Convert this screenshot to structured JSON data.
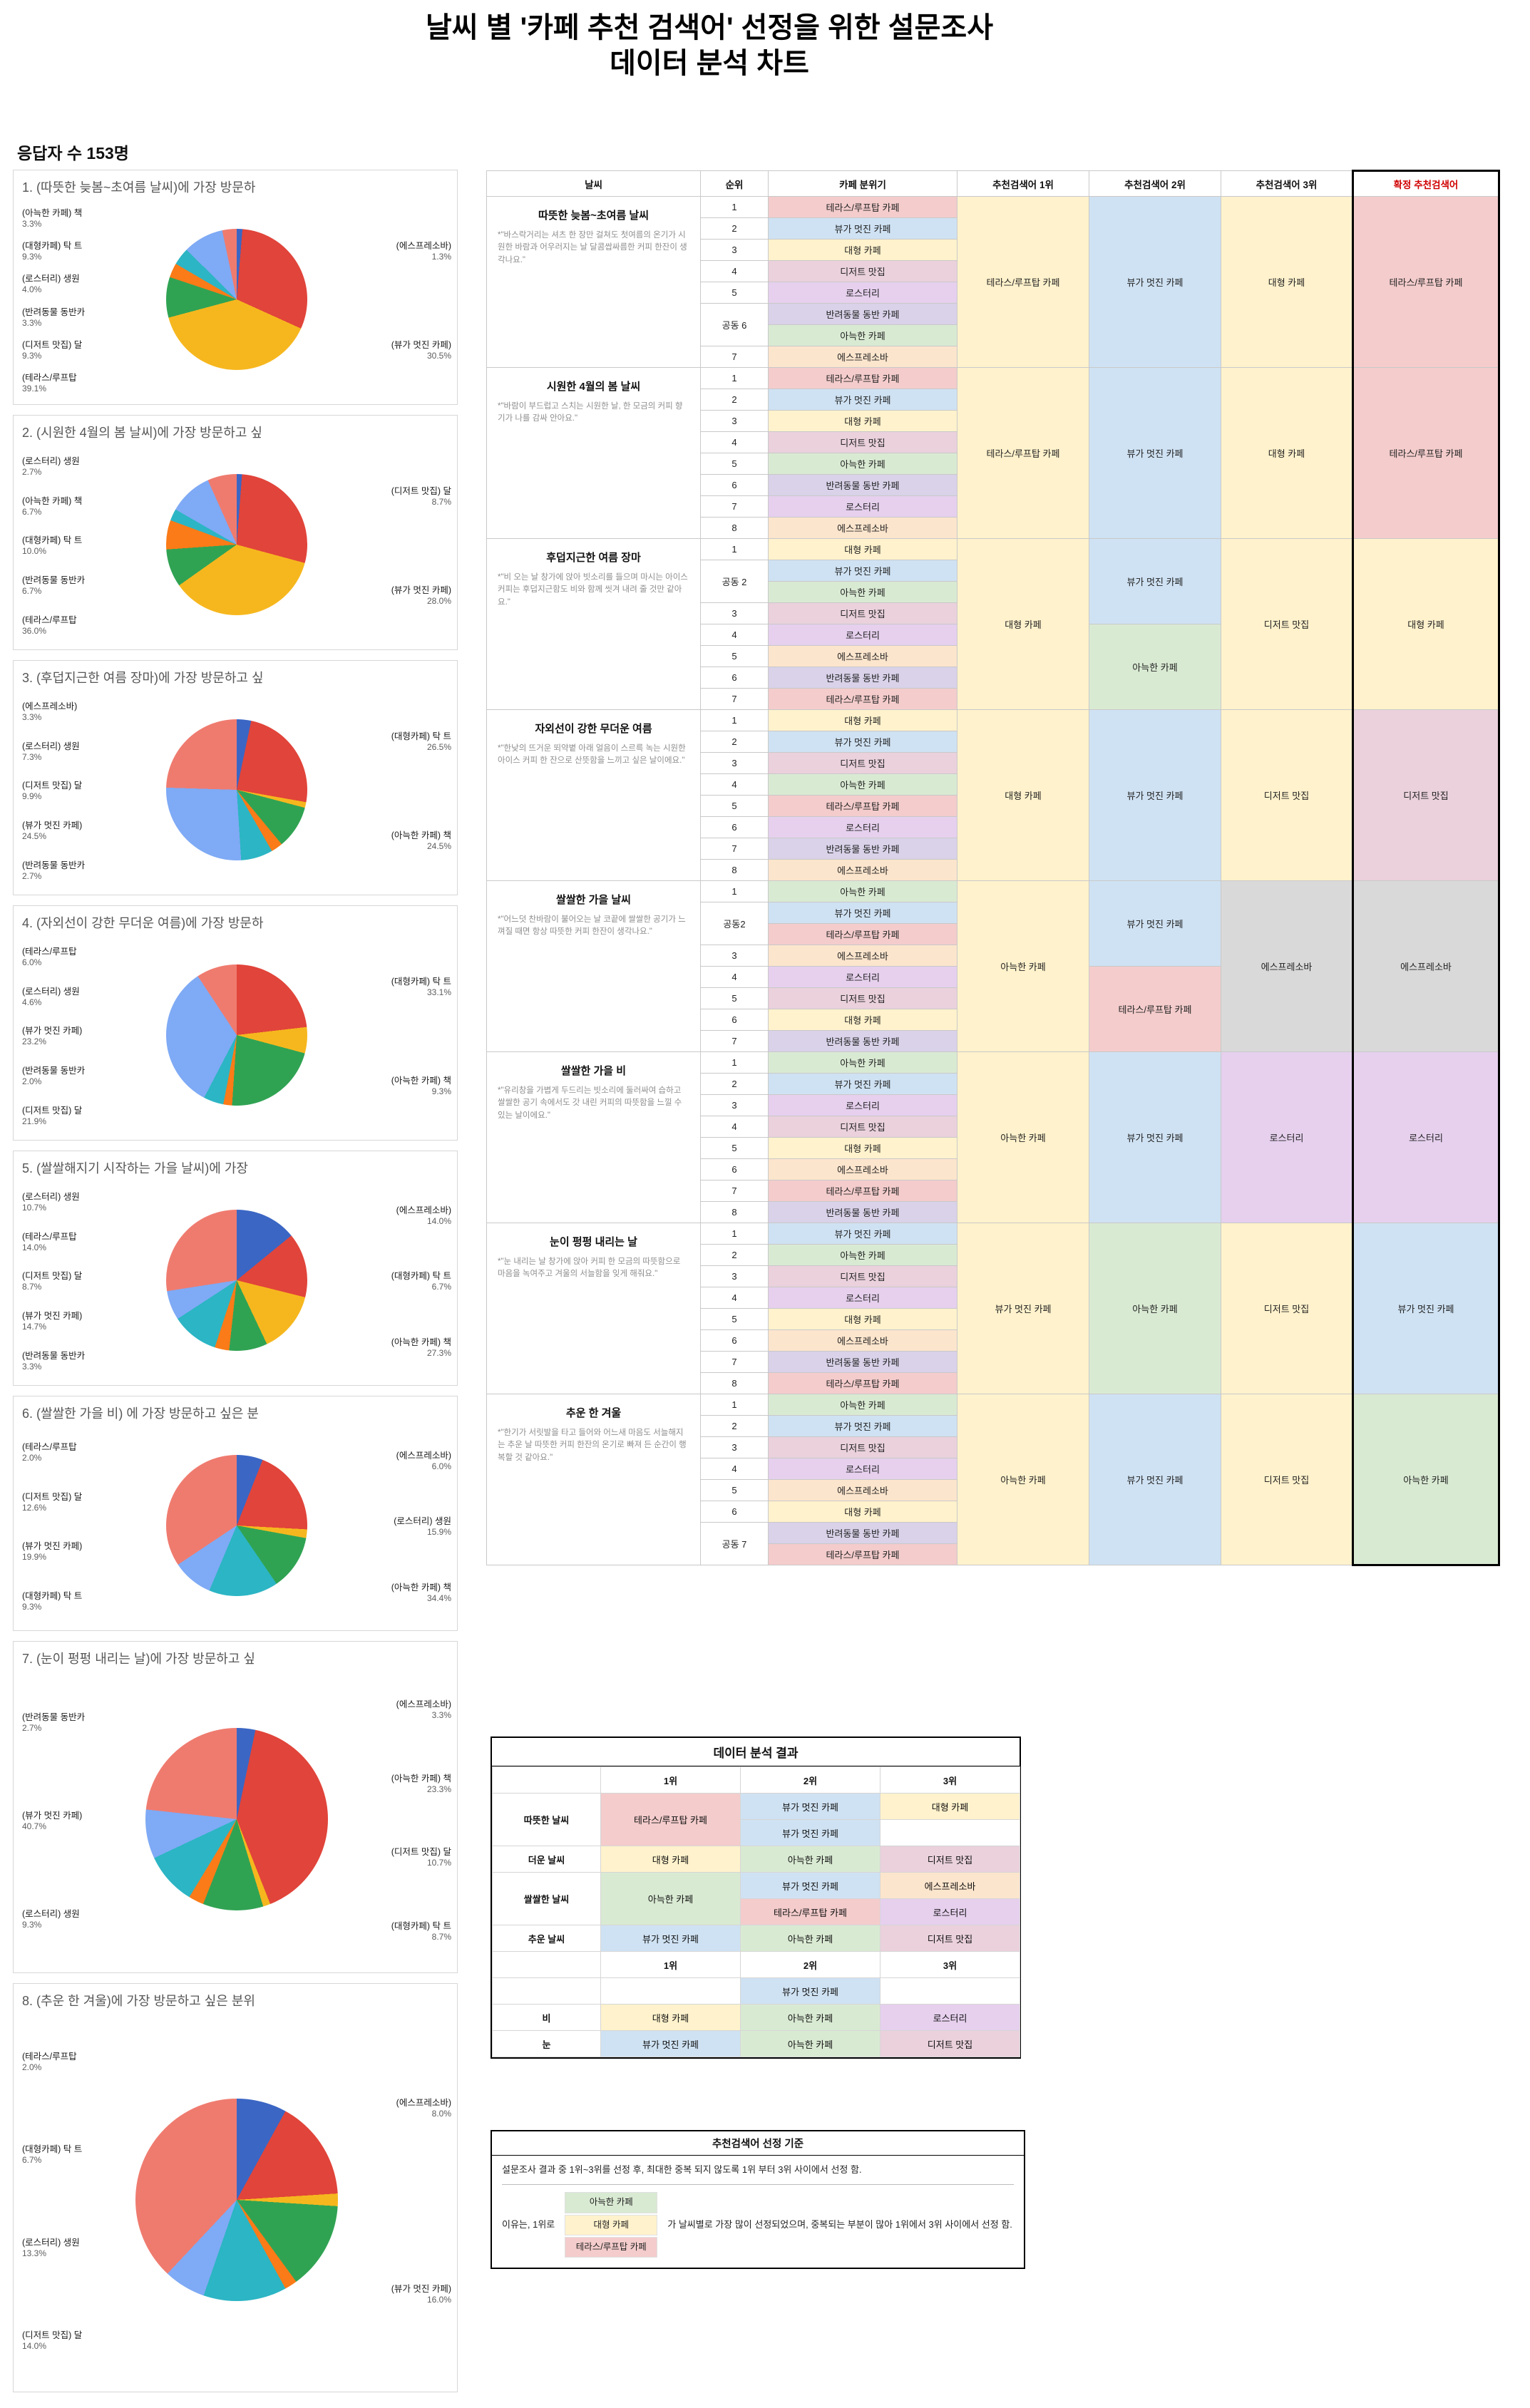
{
  "title": {
    "line1": "날씨 별 '카페 추천 검색어' 선정을 위한 설문조사",
    "line2": "데이터 분석 차트"
  },
  "respondents": "응답자 수 153명",
  "cafe_colors": {
    "테라스/루프탑 카페": "#f4cccc",
    "뷰가 멋진 카페": "#cfe2f3",
    "대형 카페": "#fff2cc",
    "디저트 맛집": "#ead1dc",
    "로스터리": "#e6d0ee",
    "반려동물 동반 카페": "#d9d2e9",
    "아늑한 카페": "#d9ead3",
    "에스프레소바": "#fce5cd"
  },
  "pie_categories": [
    {
      "key": "espresso",
      "label": "(에스프레소바)",
      "color": "#3b66c4"
    },
    {
      "key": "view",
      "label": "(뷰가 멋진 카페)",
      "color": "#e1443a"
    },
    {
      "key": "terrace",
      "label": "(테라스/루프탑",
      "color": "#f6b71e"
    },
    {
      "key": "dessert",
      "label": "(디저트 맛집) 달",
      "color": "#30a353"
    },
    {
      "key": "pet",
      "label": "(반려동물 동반카",
      "color": "#fa7b17"
    },
    {
      "key": "roastery",
      "label": "(로스터리) 생원",
      "color": "#2cb5c4"
    },
    {
      "key": "large",
      "label": "(대형카페) 탁 트",
      "color": "#7faaf5"
    },
    {
      "key": "cozy",
      "label": "(아늑한 카페) 책",
      "color": "#ef7b6f"
    }
  ],
  "chart_data": [
    {
      "type": "pie",
      "title": "1. (따뜻한 늦봄~초여름 날씨)에 가장 방문하",
      "values": {
        "espresso": 1.3,
        "view": 30.5,
        "terrace": 39.1,
        "dessert": 9.3,
        "pet": 3.3,
        "roastery": 4.0,
        "large": 9.3,
        "cozy": 3.3
      },
      "left": [
        "cozy",
        "large",
        "roastery",
        "pet",
        "dessert",
        "terrace"
      ],
      "right": [
        "espresso",
        "view"
      ]
    },
    {
      "type": "pie",
      "title": "2. (시원한 4월의 봄 날씨)에 가장 방문하고 싶",
      "values": {
        "espresso": 1.2,
        "view": 28.0,
        "terrace": 36.0,
        "dessert": 8.7,
        "pet": 6.7,
        "roastery": 2.7,
        "large": 10.0,
        "cozy": 6.7
      },
      "left": [
        "roastery",
        "cozy",
        "large",
        "pet",
        "terrace"
      ],
      "right": [
        "dessert",
        "view"
      ]
    },
    {
      "type": "pie",
      "title": "3. (후덥지근한 여름 장마)에 가장 방문하고 싶",
      "values": {
        "espresso": 3.3,
        "view": 24.5,
        "terrace": 1.3,
        "dessert": 9.9,
        "pet": 2.7,
        "roastery": 7.3,
        "large": 26.5,
        "cozy": 24.5
      },
      "left": [
        "espresso",
        "roastery",
        "dessert",
        "view",
        "pet"
      ],
      "right": [
        "large",
        "cozy"
      ]
    },
    {
      "type": "pie",
      "title": "4. (자외선이 강한 무더운 여름)에 가장 방문하",
      "values": {
        "espresso": 0,
        "view": 23.2,
        "terrace": 6.0,
        "dessert": 21.9,
        "pet": 2.0,
        "roastery": 4.6,
        "large": 33.1,
        "cozy": 9.3
      },
      "left": [
        "terrace",
        "roastery",
        "view",
        "pet",
        "dessert"
      ],
      "right": [
        "large",
        "cozy"
      ]
    },
    {
      "type": "pie",
      "title": "5. (쌀쌀해지기 시작하는 가을 날씨)에 가장",
      "values": {
        "espresso": 14.0,
        "view": 14.7,
        "terrace": 14.0,
        "dessert": 8.7,
        "pet": 3.3,
        "roastery": 10.7,
        "large": 6.7,
        "cozy": 27.3
      },
      "left": [
        "roastery",
        "terrace",
        "dessert",
        "view",
        "pet"
      ],
      "right": [
        "espresso",
        "large",
        "cozy"
      ]
    },
    {
      "type": "pie",
      "title": "6. (쌀쌀한 가을 비) 에 가장 방문하고 싶은 분",
      "values": {
        "espresso": 6.0,
        "view": 19.9,
        "terrace": 2.0,
        "dessert": 12.6,
        "pet": 0,
        "roastery": 15.9,
        "large": 9.3,
        "cozy": 34.4
      },
      "left": [
        "terrace",
        "dessert",
        "view",
        "large"
      ],
      "right": [
        "espresso",
        "roastery",
        "cozy"
      ]
    },
    {
      "type": "pie",
      "title": "7. (눈이 펑펑 내리는 날)에 가장 방문하고 싶",
      "values": {
        "espresso": 3.3,
        "view": 40.7,
        "terrace": 1.3,
        "dessert": 10.7,
        "pet": 2.7,
        "roastery": 9.3,
        "large": 8.7,
        "cozy": 23.3
      },
      "left": [
        "pet",
        "view",
        "roastery"
      ],
      "right": [
        "espresso",
        "cozy",
        "dessert",
        "large"
      ]
    },
    {
      "type": "pie",
      "title": "8. (추운 한 겨울)에 가장 방문하고 싶은 분위",
      "values": {
        "espresso": 8.0,
        "view": 16.0,
        "terrace": 2.0,
        "dessert": 14.0,
        "pet": 2.0,
        "roastery": 13.3,
        "large": 6.7,
        "cozy": 38.0
      },
      "left": [
        "terrace",
        "large",
        "roastery",
        "dessert"
      ],
      "right": [
        "espresso",
        "view"
      ]
    }
  ],
  "table": {
    "headers": [
      "날씨",
      "순위",
      "카페 분위기",
      "추천검색어 1위",
      "추천검색어 2위",
      "추천검색어 3위",
      "확정 추천검색어"
    ],
    "groups": [
      {
        "weather": "따뜻한 늦봄~초여름 날씨",
        "quote": "*\"바스락거리는 셔츠 한 장만 걸쳐도 첫여름의 온기가 시원한 바람과 어우러지는 날 달콤쌉싸름한 커피 한잔이 생각나요.\"",
        "ranks": [
          {
            "r": "1"
          },
          {
            "r": "2"
          },
          {
            "r": "3"
          },
          {
            "r": "4"
          },
          {
            "r": "5"
          },
          {
            "r": "공동 6",
            "span": 2
          },
          {
            "r": "7"
          }
        ],
        "cafes": [
          "테라스/루프탑 카페",
          "뷰가 멋진 카페",
          "대형 카페",
          "디저트 맛집",
          "로스터리",
          "반려동물 동반 카페",
          "아늑한 카페",
          "에스프레소바"
        ],
        "rec1": [
          {
            "t": "테라스/루프탑 카페",
            "c": "#fff2cc",
            "span": 8
          }
        ],
        "rec2": [
          {
            "t": "뷰가 멋진 카페",
            "c": "#cfe2f3",
            "span": 8
          }
        ],
        "rec3": [
          {
            "t": "대형 카페",
            "c": "#fff2cc",
            "span": 8
          }
        ],
        "final": {
          "t": "테라스/루프탑 카페",
          "c": "#f4cccc"
        }
      },
      {
        "weather": "시원한 4월의 봄 날씨",
        "quote": "*\"바람이 부드럽고 스치는 시원한 날, 한 모금의 커피 향기가 나를 감싸 안아요.\"",
        "ranks": [
          {
            "r": "1"
          },
          {
            "r": "2"
          },
          {
            "r": "3"
          },
          {
            "r": "4"
          },
          {
            "r": "5"
          },
          {
            "r": "6"
          },
          {
            "r": "7"
          },
          {
            "r": "8"
          }
        ],
        "cafes": [
          "테라스/루프탑 카페",
          "뷰가 멋진 카페",
          "대형 카페",
          "디저트 맛집",
          "아늑한 카페",
          "반려동물 동반 카페",
          "로스터리",
          "에스프레소바"
        ],
        "rec1": [
          {
            "t": "테라스/루프탑 카페",
            "c": "#fff2cc",
            "span": 8
          }
        ],
        "rec2": [
          {
            "t": "뷰가 멋진 카페",
            "c": "#cfe2f3",
            "span": 8
          }
        ],
        "rec3": [
          {
            "t": "대형 카페",
            "c": "#fff2cc",
            "span": 8
          }
        ],
        "final": {
          "t": "테라스/루프탑 카페",
          "c": "#f4cccc"
        }
      },
      {
        "weather": "후덥지근한 여름 장마",
        "quote": "*\"비 오는 날 창가에 앉아 빗소리를 들으며 마시는 아이스 커피는 후덥지근함도 비와 함께 씻겨 내려 줄 것만 같아요.\"",
        "ranks": [
          {
            "r": "1"
          },
          {
            "r": "공동 2",
            "span": 2
          },
          {
            "r": "3"
          },
          {
            "r": "4"
          },
          {
            "r": "5"
          },
          {
            "r": "6"
          },
          {
            "r": "7"
          }
        ],
        "cafes": [
          "대형 카페",
          "뷰가 멋진 카페",
          "아늑한 카페",
          "디저트 맛집",
          "로스터리",
          "에스프레소바",
          "반려동물 동반 카페",
          "테라스/루프탑 카페"
        ],
        "rec1": [
          {
            "t": "대형 카페",
            "c": "#fff2cc",
            "span": 8
          }
        ],
        "rec2": [
          {
            "t": "뷰가 멋진 카페",
            "c": "#cfe2f3",
            "span": 4
          },
          {
            "t": "아늑한 카페",
            "c": "#d9ead3",
            "span": 4
          }
        ],
        "rec3": [
          {
            "t": "디저트 맛집",
            "c": "#fff2cc",
            "span": 8
          }
        ],
        "final": {
          "t": "대형 카페",
          "c": "#fff2cc"
        }
      },
      {
        "weather": "자외선이 강한 무더운 여름",
        "quote": "*\"한낮의 뜨거운 뙤약볕 아래 얼음이 스르륵 녹는 시원한 아이스 커피 한 잔으로 산뜻함을 느끼고 싶은 날이에요.\"",
        "ranks": [
          {
            "r": "1"
          },
          {
            "r": "2"
          },
          {
            "r": "3"
          },
          {
            "r": "4"
          },
          {
            "r": "5"
          },
          {
            "r": "6"
          },
          {
            "r": "7"
          },
          {
            "r": "8"
          }
        ],
        "cafes": [
          "대형 카페",
          "뷰가 멋진 카페",
          "디저트 맛집",
          "아늑한 카페",
          "테라스/루프탑 카페",
          "로스터리",
          "반려동물 동반 카페",
          "에스프레소바"
        ],
        "rec1": [
          {
            "t": "대형 카페",
            "c": "#fff2cc",
            "span": 8
          }
        ],
        "rec2": [
          {
            "t": "뷰가 멋진 카페",
            "c": "#cfe2f3",
            "span": 8
          }
        ],
        "rec3": [
          {
            "t": "디저트 맛집",
            "c": "#fff2cc",
            "span": 8
          }
        ],
        "final": {
          "t": "디저트 맛집",
          "c": "#ead1dc"
        }
      },
      {
        "weather": "쌀쌀한 가을 날씨",
        "quote": "*\"어느덧 찬바람이 불어오는 날 코끝에 쌀쌀한 공기가 느껴질 때면 항상 따뜻한 커피 한잔이 생각나요.\"",
        "ranks": [
          {
            "r": "1"
          },
          {
            "r": "공동2",
            "span": 2
          },
          {
            "r": "3"
          },
          {
            "r": "4"
          },
          {
            "r": "5"
          },
          {
            "r": "6"
          },
          {
            "r": "7"
          }
        ],
        "cafes": [
          "아늑한 카페",
          "뷰가 멋진 카페",
          "테라스/루프탑 카페",
          "에스프레소바",
          "로스터리",
          "디저트 맛집",
          "대형 카페",
          "반려동물 동반 카페"
        ],
        "rec1": [
          {
            "t": "아늑한 카페",
            "c": "#fff2cc",
            "span": 8
          }
        ],
        "rec2": [
          {
            "t": "뷰가 멋진 카페",
            "c": "#cfe2f3",
            "span": 4
          },
          {
            "t": "테라스/루프탑 카페",
            "c": "#f4cccc",
            "span": 4
          }
        ],
        "rec3": [
          {
            "t": "에스프레소바",
            "c": "#d9d9d9",
            "span": 8
          }
        ],
        "final": {
          "t": "에스프레소바",
          "c": "#d9d9d9"
        }
      },
      {
        "weather": "쌀쌀한 가을 비",
        "quote": "*\"유리창을 가볍게 두드리는 빗소리에 둘러싸여 습하고 쌀쌀한 공기 속에서도 갓 내린 커피의 따뜻함을 느낄 수 있는 날이에요.\"",
        "ranks": [
          {
            "r": "1"
          },
          {
            "r": "2"
          },
          {
            "r": "3"
          },
          {
            "r": "4"
          },
          {
            "r": "5"
          },
          {
            "r": "6"
          },
          {
            "r": "7"
          },
          {
            "r": "8"
          }
        ],
        "cafes": [
          "아늑한 카페",
          "뷰가 멋진 카페",
          "로스터리",
          "디저트 맛집",
          "대형 카페",
          "에스프레소바",
          "테라스/루프탑 카페",
          "반려동물 동반 카페"
        ],
        "rec1": [
          {
            "t": "아늑한 카페",
            "c": "#fff2cc",
            "span": 8
          }
        ],
        "rec2": [
          {
            "t": "뷰가 멋진 카페",
            "c": "#cfe2f3",
            "span": 8
          }
        ],
        "rec3": [
          {
            "t": "로스터리",
            "c": "#e6d0ee",
            "span": 8
          }
        ],
        "final": {
          "t": "로스터리",
          "c": "#e6d0ee"
        }
      },
      {
        "weather": "눈이 펑펑 내리는 날",
        "quote": "*\"눈 내리는 날 창가에 앉아 커피 한 모금의 따뜻함으로 마음을 녹여주고 겨울의 서늘함을 잊게 해줘요.\"",
        "ranks": [
          {
            "r": "1"
          },
          {
            "r": "2"
          },
          {
            "r": "3"
          },
          {
            "r": "4"
          },
          {
            "r": "5"
          },
          {
            "r": "6"
          },
          {
            "r": "7"
          },
          {
            "r": "8"
          }
        ],
        "cafes": [
          "뷰가 멋진 카페",
          "아늑한 카페",
          "디저트 맛집",
          "로스터리",
          "대형 카페",
          "에스프레소바",
          "반려동물 동반 카페",
          "테라스/루프탑 카페"
        ],
        "rec1": [
          {
            "t": "뷰가 멋진 카페",
            "c": "#fff2cc",
            "span": 8
          }
        ],
        "rec2": [
          {
            "t": "아늑한 카페",
            "c": "#d9ead3",
            "span": 8
          }
        ],
        "rec3": [
          {
            "t": "디저트 맛집",
            "c": "#fff2cc",
            "span": 8
          }
        ],
        "final": {
          "t": "뷰가 멋진 카페",
          "c": "#cfe2f3"
        }
      },
      {
        "weather": "추운 한 겨울",
        "quote": "*\"한기가 서릿발을 타고 들어와 어느새 마음도 서늘해지는 추운 날 따뜻한 커피 한잔의 온기로 빠져 든 순간이 행복할 것 같아요.\"",
        "ranks": [
          {
            "r": "1"
          },
          {
            "r": "2"
          },
          {
            "r": "3"
          },
          {
            "r": "4"
          },
          {
            "r": "5"
          },
          {
            "r": "6"
          },
          {
            "r": "공동 7",
            "span": 2
          }
        ],
        "cafes": [
          "아늑한 카페",
          "뷰가 멋진 카페",
          "디저트 맛집",
          "로스터리",
          "에스프레소바",
          "대형 카페",
          "반려동물 동반 카페",
          "테라스/루프탑 카페"
        ],
        "rec1": [
          {
            "t": "아늑한 카페",
            "c": "#fff2cc",
            "span": 8
          }
        ],
        "rec2": [
          {
            "t": "뷰가 멋진 카페",
            "c": "#cfe2f3",
            "span": 8
          }
        ],
        "rec3": [
          {
            "t": "디저트 맛집",
            "c": "#fff2cc",
            "span": 8
          }
        ],
        "final": {
          "t": "아늑한 카페",
          "c": "#d9ead3"
        }
      }
    ]
  },
  "summary": {
    "title": "데이터 분석 결과",
    "header": [
      "",
      "1위",
      "2위",
      "3위"
    ],
    "rows": [
      [
        {
          "t": "따뜻한 날씨",
          "lbl": true,
          "rs": 2
        },
        {
          "t": "테라스/루프탑 카페",
          "c": "#f4cccc",
          "rs": 2
        },
        {
          "t": "뷰가 멋진 카페",
          "c": "#cfe2f3"
        },
        {
          "t": "대형 카페",
          "c": "#fff2cc"
        }
      ],
      [
        {
          "t": "뷰가 멋진 카페",
          "c": "#cfe2f3"
        },
        {
          "t": ""
        }
      ],
      [
        {
          "t": "더운 날씨",
          "lbl": true
        },
        {
          "t": "대형 카페",
          "c": "#fff2cc"
        },
        {
          "t": "아늑한 카페",
          "c": "#d9ead3"
        },
        {
          "t": "디저트 맛집",
          "c": "#ead1dc"
        }
      ],
      [
        {
          "t": "쌀쌀한 날씨",
          "lbl": true,
          "rs": 2
        },
        {
          "t": "아늑한 카페",
          "c": "#d9ead3",
          "rs": 2
        },
        {
          "t": "뷰가 멋진 카페",
          "c": "#cfe2f3"
        },
        {
          "t": "에스프레소바",
          "c": "#fce5cd"
        }
      ],
      [
        {
          "t": "테라스/루프탑 카페",
          "c": "#f4cccc"
        },
        {
          "t": "로스터리",
          "c": "#e6d0ee"
        }
      ],
      [
        {
          "t": "추운 날씨",
          "lbl": true
        },
        {
          "t": "뷰가 멋진 카페",
          "c": "#cfe2f3"
        },
        {
          "t": "아늑한 카페",
          "c": "#d9ead3"
        },
        {
          "t": "디저트 맛집",
          "c": "#ead1dc"
        }
      ]
    ],
    "header2": [
      "",
      "1위",
      "2위",
      "3위"
    ],
    "rows2": [
      [
        {
          "t": "",
          "lbl": true
        },
        {
          "t": ""
        },
        {
          "t": "뷰가 멋진 카페",
          "c": "#cfe2f3"
        },
        {
          "t": ""
        }
      ],
      [
        {
          "t": "비",
          "lbl": true
        },
        {
          "t": "대형 카페",
          "c": "#fff2cc"
        },
        {
          "t": "아늑한 카페",
          "c": "#d9ead3"
        },
        {
          "t": "로스터리",
          "c": "#e6d0ee"
        }
      ],
      [
        {
          "t": "눈",
          "lbl": true
        },
        {
          "t": "뷰가 멋진 카페",
          "c": "#cfe2f3"
        },
        {
          "t": "아늑한 카페",
          "c": "#d9ead3"
        },
        {
          "t": "디저트 맛집",
          "c": "#ead1dc"
        }
      ]
    ]
  },
  "criteria": {
    "title": "추천검색어 선정 기준",
    "line1": "설문조사 결과 중 1위~3위를 선정 후, 최대한 중복 되지 않도록 1위 부터 3위 사이에서 선정 함.",
    "reason_prefix": "이유는, 1위로",
    "chips": [
      {
        "t": "아늑한 카페",
        "c": "#d9ead3"
      },
      {
        "t": "대형 카페",
        "c": "#fff2cc"
      },
      {
        "t": "테라스/루프탑 카페",
        "c": "#f4cccc"
      }
    ],
    "reason_suffix": "가 날씨별로 가장 많이 선정되었으며, 중복되는 부분이 많아 1위에서 3위 사이에서 선정 함."
  }
}
